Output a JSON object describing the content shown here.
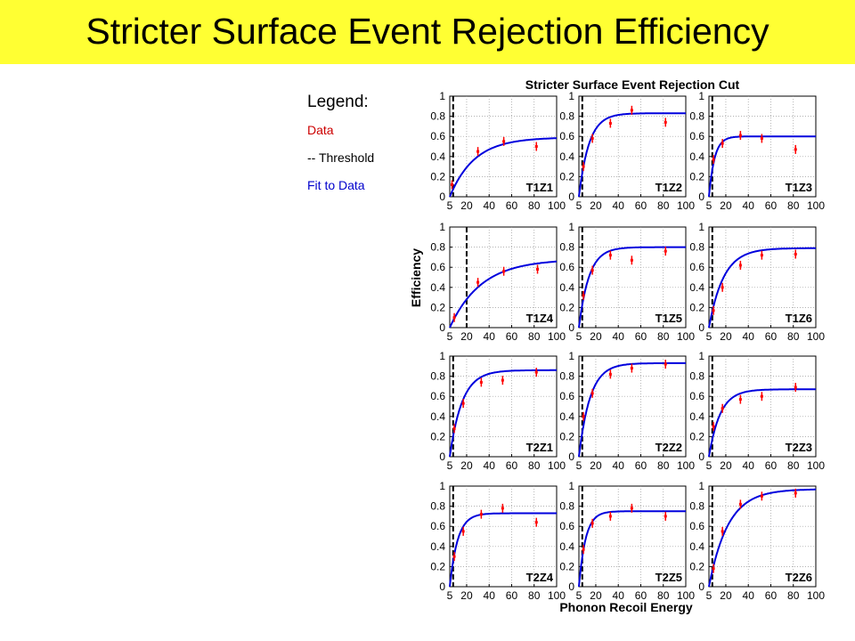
{
  "slide": {
    "title": "Stricter Surface Event Rejection Efficiency",
    "background_color": "#ffff33"
  },
  "legend": {
    "title": "Legend:",
    "items": [
      {
        "label": "Data",
        "color": "#cc0000"
      },
      {
        "label": "-- Threshold",
        "color": "#000000"
      },
      {
        "label": "Fit to Data",
        "color": "#0000cc"
      }
    ]
  },
  "chart_data": {
    "type": "scatter",
    "title": "Stricter Surface Event Rejection Cut",
    "xlabel": "Phonon Recoil Energy",
    "ylabel": "Efficiency",
    "xlim": [
      5,
      100
    ],
    "ylim": [
      0,
      1
    ],
    "xticks": [
      5,
      20,
      40,
      60,
      80,
      100
    ],
    "yticks": [
      0,
      0.2,
      0.4,
      0.6,
      0.8,
      1
    ],
    "grid": true,
    "colors": {
      "data": "#ff0000",
      "fit": "#0000dd",
      "threshold": "#000000"
    },
    "panels": [
      {
        "label": "T1Z1",
        "threshold": 8,
        "fit": {
          "plateau": 0.59,
          "scale": 22
        },
        "points": [
          {
            "x": 7,
            "y": 0.12
          },
          {
            "x": 30,
            "y": 0.45
          },
          {
            "x": 53,
            "y": 0.55
          },
          {
            "x": 82,
            "y": 0.5
          }
        ]
      },
      {
        "label": "T1Z2",
        "threshold": 8,
        "fit": {
          "plateau": 0.83,
          "scale": 9
        },
        "points": [
          {
            "x": 9,
            "y": 0.3
          },
          {
            "x": 17,
            "y": 0.58
          },
          {
            "x": 33,
            "y": 0.73
          },
          {
            "x": 52,
            "y": 0.86
          },
          {
            "x": 82,
            "y": 0.74
          }
        ]
      },
      {
        "label": "T1Z3",
        "threshold": 8,
        "fit": {
          "plateau": 0.6,
          "scale": 5
        },
        "points": [
          {
            "x": 9,
            "y": 0.37
          },
          {
            "x": 17,
            "y": 0.53
          },
          {
            "x": 33,
            "y": 0.61
          },
          {
            "x": 52,
            "y": 0.58
          },
          {
            "x": 82,
            "y": 0.47
          }
        ]
      },
      {
        "label": "T1Z4",
        "threshold": 20,
        "fit": {
          "plateau": 0.68,
          "scale": 28
        },
        "points": [
          {
            "x": 9,
            "y": 0.1
          },
          {
            "x": 30,
            "y": 0.45
          },
          {
            "x": 53,
            "y": 0.56
          },
          {
            "x": 83,
            "y": 0.58
          }
        ]
      },
      {
        "label": "T1Z5",
        "threshold": 8,
        "fit": {
          "plateau": 0.8,
          "scale": 9
        },
        "points": [
          {
            "x": 9,
            "y": 0.32
          },
          {
            "x": 17,
            "y": 0.57
          },
          {
            "x": 33,
            "y": 0.72
          },
          {
            "x": 52,
            "y": 0.67
          },
          {
            "x": 82,
            "y": 0.76
          }
        ]
      },
      {
        "label": "T1Z6",
        "threshold": 8,
        "fit": {
          "plateau": 0.79,
          "scale": 13
        },
        "points": [
          {
            "x": 9,
            "y": 0.17
          },
          {
            "x": 17,
            "y": 0.4
          },
          {
            "x": 33,
            "y": 0.62
          },
          {
            "x": 52,
            "y": 0.72
          },
          {
            "x": 82,
            "y": 0.73
          }
        ]
      },
      {
        "label": "T2Z1",
        "threshold": 8,
        "fit": {
          "plateau": 0.86,
          "scale": 11
        },
        "points": [
          {
            "x": 9,
            "y": 0.28
          },
          {
            "x": 17,
            "y": 0.53
          },
          {
            "x": 33,
            "y": 0.74
          },
          {
            "x": 52,
            "y": 0.76
          },
          {
            "x": 82,
            "y": 0.84
          }
        ]
      },
      {
        "label": "T2Z2",
        "threshold": 8,
        "fit": {
          "plateau": 0.93,
          "scale": 10
        },
        "points": [
          {
            "x": 9,
            "y": 0.4
          },
          {
            "x": 17,
            "y": 0.63
          },
          {
            "x": 33,
            "y": 0.82
          },
          {
            "x": 52,
            "y": 0.88
          },
          {
            "x": 82,
            "y": 0.92
          }
        ]
      },
      {
        "label": "T2Z3",
        "threshold": 8,
        "fit": {
          "plateau": 0.67,
          "scale": 10
        },
        "points": [
          {
            "x": 9,
            "y": 0.3
          },
          {
            "x": 17,
            "y": 0.48
          },
          {
            "x": 33,
            "y": 0.57
          },
          {
            "x": 52,
            "y": 0.6
          },
          {
            "x": 82,
            "y": 0.69
          }
        ]
      },
      {
        "label": "T2Z4",
        "threshold": 8,
        "fit": {
          "plateau": 0.73,
          "scale": 7
        },
        "points": [
          {
            "x": 9,
            "y": 0.3
          },
          {
            "x": 17,
            "y": 0.55
          },
          {
            "x": 33,
            "y": 0.72
          },
          {
            "x": 52,
            "y": 0.78
          },
          {
            "x": 82,
            "y": 0.64
          }
        ]
      },
      {
        "label": "T2Z5",
        "threshold": 8,
        "fit": {
          "plateau": 0.75,
          "scale": 6
        },
        "points": [
          {
            "x": 9,
            "y": 0.37
          },
          {
            "x": 17,
            "y": 0.63
          },
          {
            "x": 33,
            "y": 0.7
          },
          {
            "x": 52,
            "y": 0.78
          },
          {
            "x": 82,
            "y": 0.7
          }
        ]
      },
      {
        "label": "T2Z6",
        "threshold": 8,
        "fit": {
          "plateau": 0.97,
          "scale": 17
        },
        "points": [
          {
            "x": 9,
            "y": 0.18
          },
          {
            "x": 17,
            "y": 0.55
          },
          {
            "x": 33,
            "y": 0.82
          },
          {
            "x": 52,
            "y": 0.9
          },
          {
            "x": 82,
            "y": 0.93
          }
        ]
      }
    ]
  }
}
